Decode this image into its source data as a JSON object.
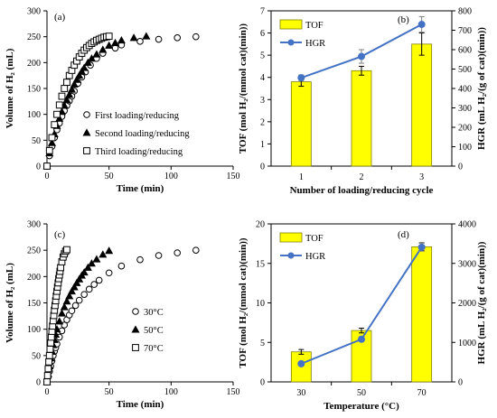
{
  "chart_data": [
    {
      "type": "scatter",
      "panel": "(a)",
      "xlabel": "Time (min)",
      "ylabel": "Volume of H₂ (mL)",
      "xlim": [
        0,
        150
      ],
      "ylim": [
        0,
        300
      ],
      "xticks": [
        0,
        50,
        100,
        150
      ],
      "yticks": [
        0,
        50,
        100,
        150,
        200,
        250,
        300
      ],
      "legend_position": "lower-right",
      "series": [
        {
          "name": "First loading/reducing",
          "marker": "circle",
          "x": [
            0,
            2,
            4,
            6,
            8,
            10,
            12,
            14,
            16,
            18,
            20,
            22,
            25,
            28,
            31,
            35,
            40,
            45,
            55,
            60,
            75,
            90,
            105,
            120
          ],
          "y": [
            0,
            20,
            38,
            55,
            70,
            83,
            96,
            107,
            117,
            126,
            135,
            145,
            160,
            172,
            182,
            195,
            208,
            218,
            228,
            234,
            241,
            245,
            248,
            250
          ]
        },
        {
          "name": "Second loading/reducing",
          "marker": "triangle",
          "x": [
            0,
            2,
            4,
            6,
            8,
            10,
            12,
            14,
            16,
            18,
            20,
            22,
            24,
            26,
            28,
            30,
            33,
            36,
            40,
            45,
            50,
            55,
            60,
            70,
            80
          ],
          "y": [
            0,
            25,
            45,
            62,
            78,
            92,
            105,
            117,
            128,
            138,
            148,
            158,
            167,
            175,
            183,
            190,
            200,
            208,
            216,
            225,
            233,
            238,
            243,
            248,
            251
          ]
        },
        {
          "name": "Third loading/reducing",
          "marker": "square",
          "x": [
            0,
            2,
            4,
            6,
            8,
            10,
            12,
            14,
            16,
            18,
            20,
            22,
            24,
            26,
            28,
            30,
            32,
            34,
            36,
            38,
            40,
            42,
            44,
            46,
            48,
            50
          ],
          "y": [
            0,
            30,
            55,
            80,
            100,
            118,
            135,
            150,
            162,
            175,
            185,
            195,
            203,
            211,
            218,
            224,
            229,
            233,
            237,
            240,
            243,
            245,
            247,
            249,
            250,
            251
          ]
        }
      ]
    },
    {
      "type": "bar",
      "panel": "(b)",
      "categories": [
        "1",
        "2",
        "3"
      ],
      "xlabel": "Number of loading/reducing cycle",
      "ylabel": "TOF (mol H₂/(mmol cat)(min))",
      "y2label": "HGR (mL H₂/(g of cat)(min))",
      "ylim": [
        0,
        7
      ],
      "y2lim": [
        0,
        800
      ],
      "yticks": [
        0,
        1,
        2,
        3,
        4,
        5,
        6,
        7
      ],
      "y2ticks": [
        0,
        100,
        200,
        300,
        400,
        500,
        600,
        700,
        800
      ],
      "legend_position": "top-left",
      "series": [
        {
          "name": "TOF",
          "kind": "bar",
          "axis": "left",
          "values": [
            3.8,
            4.3,
            5.5
          ],
          "errors": [
            0.2,
            0.2,
            0.5
          ]
        },
        {
          "name": "HGR",
          "kind": "line",
          "axis": "right",
          "values": [
            455,
            565,
            730
          ],
          "errors": [
            15,
            35,
            40
          ]
        }
      ]
    },
    {
      "type": "scatter",
      "panel": "(c)",
      "xlabel": "Time (min)",
      "ylabel": "Volume of H₂ (mL)",
      "xlim": [
        0,
        150
      ],
      "ylim": [
        0,
        300
      ],
      "xticks": [
        0,
        50,
        100,
        150
      ],
      "yticks": [
        0,
        50,
        100,
        150,
        200,
        250,
        300
      ],
      "legend_position": "lower-right",
      "series": [
        {
          "name": "30°C",
          "marker": "circle",
          "x": [
            0,
            1,
            2,
            3,
            4,
            5,
            6,
            7,
            8,
            10,
            12,
            14,
            16,
            18,
            20,
            23,
            26,
            30,
            34,
            38,
            42,
            50,
            60,
            75,
            90,
            105,
            120
          ],
          "y": [
            0,
            10,
            20,
            30,
            40,
            50,
            58,
            65,
            72,
            85,
            97,
            108,
            118,
            127,
            135,
            145,
            155,
            166,
            176,
            185,
            193,
            207,
            220,
            232,
            240,
            245,
            250
          ]
        },
        {
          "name": "50°C",
          "marker": "triangle",
          "x": [
            0,
            1,
            2,
            3,
            4,
            5,
            6,
            7,
            8,
            10,
            12,
            14,
            16,
            18,
            20,
            22,
            24,
            26,
            28,
            30,
            33,
            36,
            40,
            45,
            50
          ],
          "y": [
            0,
            15,
            30,
            45,
            58,
            70,
            80,
            90,
            100,
            115,
            130,
            142,
            153,
            163,
            172,
            180,
            188,
            195,
            202,
            208,
            217,
            225,
            233,
            242,
            249
          ]
        },
        {
          "name": "70°C",
          "marker": "square",
          "x": [
            0,
            0.5,
            1,
            1.5,
            2,
            2.5,
            3,
            3.5,
            4,
            4.5,
            5,
            5.5,
            6,
            6.5,
            7,
            7.5,
            8,
            8.5,
            9,
            9.5,
            10,
            10.5,
            11,
            12,
            13,
            14,
            15,
            16
          ],
          "y": [
            0,
            12,
            25,
            38,
            50,
            62,
            74,
            85,
            96,
            106,
            116,
            126,
            136,
            145,
            154,
            163,
            172,
            180,
            188,
            196,
            203,
            210,
            217,
            228,
            237,
            243,
            248,
            251
          ]
        }
      ]
    },
    {
      "type": "bar",
      "panel": "(d)",
      "categories": [
        "30",
        "50",
        "70"
      ],
      "xlabel": "Temperature (°C)",
      "ylabel": "TOF (mol H₂/(mmol cat)(min))",
      "y2label": "HGR (mL H₂/(g of cat)(min))",
      "ylim": [
        0,
        20
      ],
      "y2lim": [
        0,
        4000
      ],
      "yticks": [
        0,
        5,
        10,
        15,
        20
      ],
      "y2ticks": [
        0,
        1000,
        2000,
        3000,
        4000
      ],
      "legend_position": "top-left",
      "series": [
        {
          "name": "TOF",
          "kind": "bar",
          "axis": "left",
          "values": [
            3.8,
            6.5,
            17.1
          ],
          "errors": [
            0.3,
            0.3,
            0.5
          ]
        },
        {
          "name": "HGR",
          "kind": "line",
          "axis": "right",
          "values": [
            460,
            1080,
            3410
          ],
          "errors": [
            40,
            60,
            100
          ]
        }
      ]
    }
  ],
  "colors": {
    "bar_fill": "#ffff00",
    "bar_stroke": "#808000",
    "line": "#4472c4",
    "error": "#7f7f7f",
    "marker_stroke": "#000000"
  }
}
